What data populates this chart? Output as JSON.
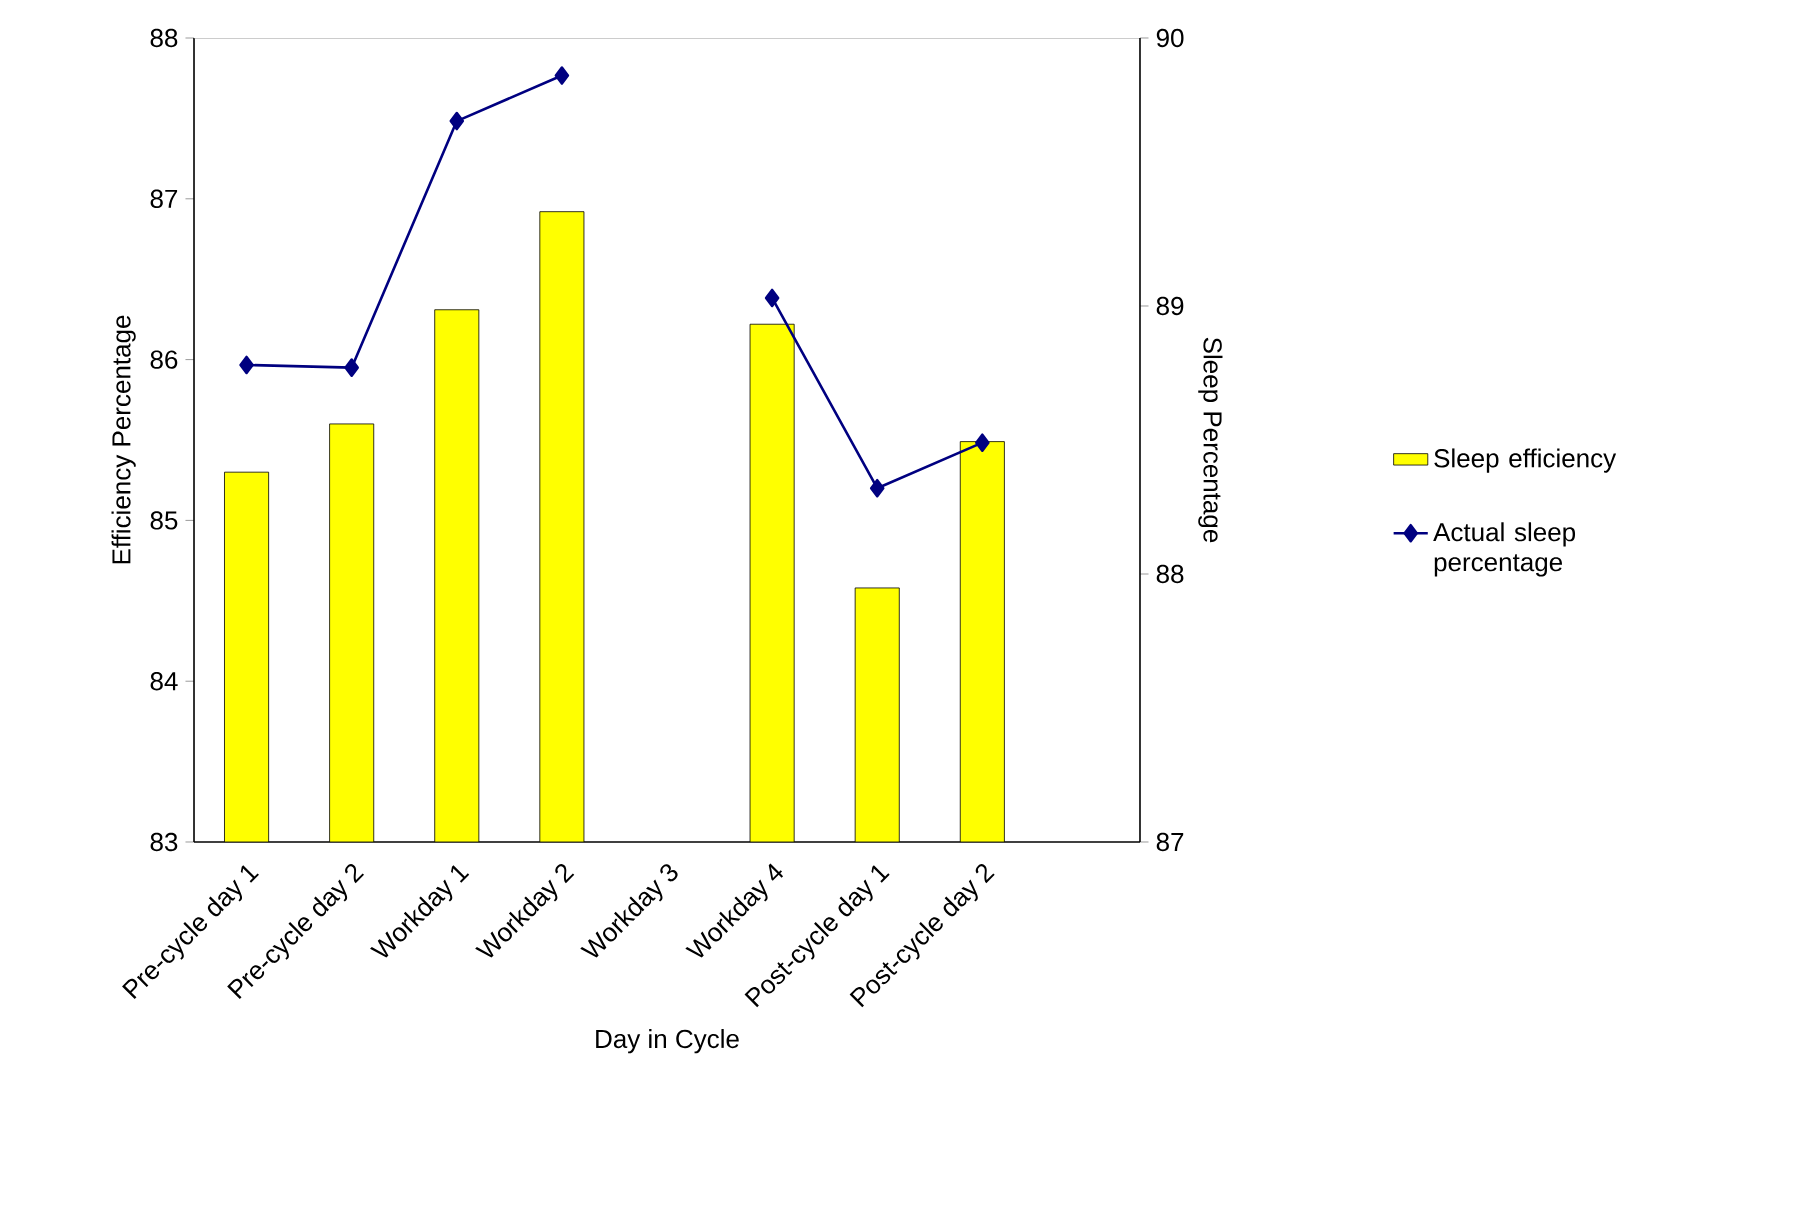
{
  "chart_data": {
    "type": "bar",
    "xlabel": "Day in Cycle",
    "ylabel": "Efficiency Percentage",
    "y2label": "Sleep Percentage",
    "categories": [
      "Pre-cycle day 1",
      "Pre-cycle day 2",
      "Workday 1",
      "Workday 2",
      "Workday 3",
      "Workday 4",
      "Post-cycle day 1",
      "Post-cycle day 2",
      null
    ],
    "series": [
      {
        "name": "Sleep efficiency",
        "color": "#ffff00",
        "values": [
          85.3,
          85.6,
          86.31,
          86.92,
          null,
          86.22,
          84.58,
          85.49,
          null
        ]
      },
      {
        "name": "Actual sleep percentage",
        "type": "line",
        "axis": "y2",
        "color": "#000080",
        "marker": "diamond",
        "values": [
          88.78,
          88.77,
          89.69,
          89.86,
          null,
          89.03,
          88.32,
          88.49,
          null
        ]
      }
    ],
    "ylim": [
      83,
      88
    ],
    "yticks": [
      83,
      84,
      85,
      86,
      87,
      88
    ],
    "y2lim": [
      87,
      90
    ],
    "y2ticks": [
      87,
      88,
      89,
      90
    ],
    "legend": "right",
    "grid": false
  }
}
